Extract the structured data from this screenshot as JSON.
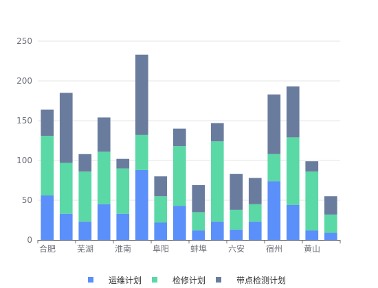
{
  "chart_data": {
    "type": "bar",
    "stacked": true,
    "categories": [
      "合肥",
      "",
      "芜湖",
      "",
      "淮南",
      "",
      "阜阳",
      "",
      "蚌埠",
      "",
      "六安",
      "",
      "宿州",
      "",
      "黄山",
      ""
    ],
    "series": [
      {
        "name": "运维计划",
        "color": "#5b8ff9",
        "values": [
          56,
          33,
          23,
          45,
          33,
          88,
          22,
          43,
          12,
          23,
          13,
          23,
          74,
          44,
          12,
          9
        ]
      },
      {
        "name": "检修计划",
        "color": "#5ad8a6",
        "values": [
          75,
          64,
          63,
          66,
          57,
          44,
          33,
          75,
          23,
          101,
          25,
          22,
          34,
          85,
          74,
          23
        ]
      },
      {
        "name": "带点检测计划",
        "color": "#6a7c9e",
        "values": [
          33,
          88,
          22,
          43,
          12,
          101,
          25,
          22,
          34,
          23,
          45,
          33,
          75,
          64,
          13,
          23
        ]
      }
    ],
    "ylim": [
      0,
      250
    ],
    "yticks": [
      0,
      50,
      100,
      150,
      200,
      250
    ],
    "grid": true,
    "legend_position": "bottom"
  }
}
